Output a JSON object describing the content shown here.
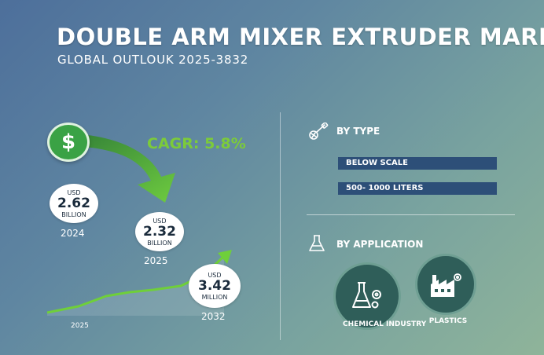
{
  "header": {
    "title": "DOUBLE ARM MIXER EXTRUDER MARKET",
    "subtitle": "GLOBAL OUTLOUK 2025-3832"
  },
  "growth": {
    "cagr": "CAGR: 5.8%",
    "dollar_symbol": "$",
    "axis_label": "2025",
    "points": [
      {
        "currency": "USD",
        "value": "2.62",
        "unit": "BILLION",
        "year": "2024"
      },
      {
        "currency": "USD",
        "value": "2.32",
        "unit": "BILLION",
        "year": "2025"
      },
      {
        "currency": "USD",
        "value": "3.42",
        "unit": "MILLION",
        "year": "2032"
      }
    ]
  },
  "by_type": {
    "heading": "BY TYPE",
    "icon": "mixer-tool-icon",
    "items": [
      "BELOW SCALE",
      "500- 1000 LITERS"
    ]
  },
  "by_application": {
    "heading": "BY APPLICATION",
    "icon": "flask-icon",
    "items": [
      {
        "label": "CHEMICAL INDUSTRY",
        "icon": "flask-gear-icon"
      },
      {
        "label": "PLASTICS",
        "icon": "factory-icon"
      }
    ]
  },
  "colors": {
    "accent_green": "#7ccb3a",
    "bar_navy": "#2d4f78",
    "circle_teal": "#2f5e59"
  }
}
